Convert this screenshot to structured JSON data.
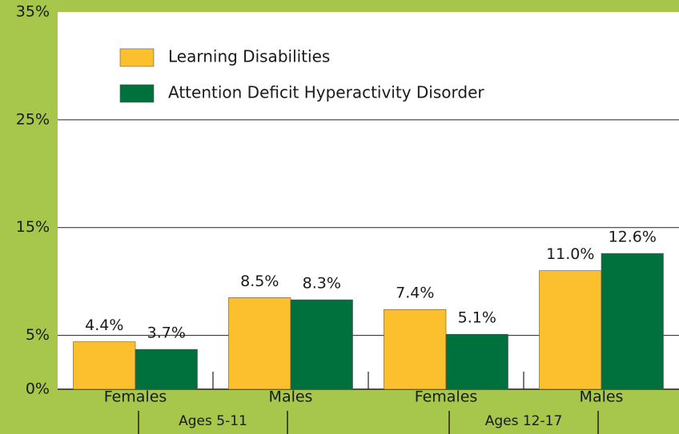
{
  "chart_data": {
    "type": "bar",
    "categories": [
      "Females",
      "Males",
      "Females",
      "Males"
    ],
    "group_labels": [
      "Ages 5-11",
      "Ages 12-17"
    ],
    "series": [
      {
        "name": "Learning Disabilities",
        "color": "#fcc02e",
        "values": [
          4.4,
          8.5,
          7.4,
          11.0
        ],
        "value_labels": [
          "4.4%",
          "8.5%",
          "7.4%",
          "11.0%"
        ]
      },
      {
        "name": "Attention Deficit Hyperactivity Disorder",
        "color": "#00703c",
        "values": [
          3.7,
          8.3,
          5.1,
          12.6
        ],
        "value_labels": [
          "3.7%",
          "8.3%",
          "5.1%",
          "12.6%"
        ]
      }
    ],
    "ylim": [
      0,
      35
    ],
    "yticks": [
      {
        "value": 0,
        "label": "0%"
      },
      {
        "value": 5,
        "label": "5%"
      },
      {
        "value": 15,
        "label": "15%"
      },
      {
        "value": 25,
        "label": "25%"
      },
      {
        "value": 35,
        "label": "35%"
      }
    ],
    "grid": true
  }
}
